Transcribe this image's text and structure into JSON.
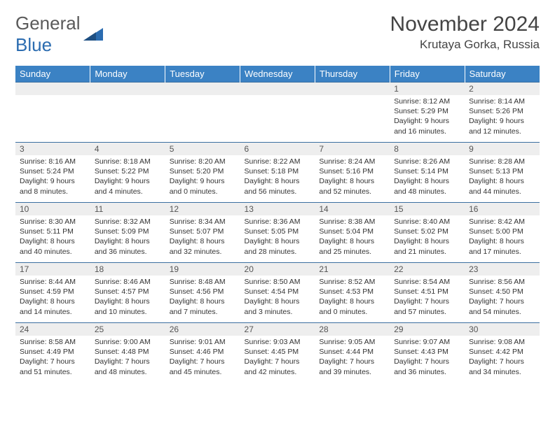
{
  "logo": {
    "text1": "General",
    "text2": "Blue"
  },
  "title": "November 2024",
  "location": "Krutaya Gorka, Russia",
  "colors": {
    "header_bg": "#3b82c4",
    "header_text": "#ffffff",
    "daynum_bg": "#eeeeee",
    "body_text": "#333333",
    "border": "#3b6fa0",
    "logo_gray": "#5a5a5a",
    "logo_blue": "#2b6cb0"
  },
  "weekdays": [
    "Sunday",
    "Monday",
    "Tuesday",
    "Wednesday",
    "Thursday",
    "Friday",
    "Saturday"
  ],
  "first_weekday_index": 5,
  "days": [
    {
      "n": "1",
      "sunrise": "8:12 AM",
      "sunset": "5:29 PM",
      "daylight": "9 hours and 16 minutes."
    },
    {
      "n": "2",
      "sunrise": "8:14 AM",
      "sunset": "5:26 PM",
      "daylight": "9 hours and 12 minutes."
    },
    {
      "n": "3",
      "sunrise": "8:16 AM",
      "sunset": "5:24 PM",
      "daylight": "9 hours and 8 minutes."
    },
    {
      "n": "4",
      "sunrise": "8:18 AM",
      "sunset": "5:22 PM",
      "daylight": "9 hours and 4 minutes."
    },
    {
      "n": "5",
      "sunrise": "8:20 AM",
      "sunset": "5:20 PM",
      "daylight": "9 hours and 0 minutes."
    },
    {
      "n": "6",
      "sunrise": "8:22 AM",
      "sunset": "5:18 PM",
      "daylight": "8 hours and 56 minutes."
    },
    {
      "n": "7",
      "sunrise": "8:24 AM",
      "sunset": "5:16 PM",
      "daylight": "8 hours and 52 minutes."
    },
    {
      "n": "8",
      "sunrise": "8:26 AM",
      "sunset": "5:14 PM",
      "daylight": "8 hours and 48 minutes."
    },
    {
      "n": "9",
      "sunrise": "8:28 AM",
      "sunset": "5:13 PM",
      "daylight": "8 hours and 44 minutes."
    },
    {
      "n": "10",
      "sunrise": "8:30 AM",
      "sunset": "5:11 PM",
      "daylight": "8 hours and 40 minutes."
    },
    {
      "n": "11",
      "sunrise": "8:32 AM",
      "sunset": "5:09 PM",
      "daylight": "8 hours and 36 minutes."
    },
    {
      "n": "12",
      "sunrise": "8:34 AM",
      "sunset": "5:07 PM",
      "daylight": "8 hours and 32 minutes."
    },
    {
      "n": "13",
      "sunrise": "8:36 AM",
      "sunset": "5:05 PM",
      "daylight": "8 hours and 28 minutes."
    },
    {
      "n": "14",
      "sunrise": "8:38 AM",
      "sunset": "5:04 PM",
      "daylight": "8 hours and 25 minutes."
    },
    {
      "n": "15",
      "sunrise": "8:40 AM",
      "sunset": "5:02 PM",
      "daylight": "8 hours and 21 minutes."
    },
    {
      "n": "16",
      "sunrise": "8:42 AM",
      "sunset": "5:00 PM",
      "daylight": "8 hours and 17 minutes."
    },
    {
      "n": "17",
      "sunrise": "8:44 AM",
      "sunset": "4:59 PM",
      "daylight": "8 hours and 14 minutes."
    },
    {
      "n": "18",
      "sunrise": "8:46 AM",
      "sunset": "4:57 PM",
      "daylight": "8 hours and 10 minutes."
    },
    {
      "n": "19",
      "sunrise": "8:48 AM",
      "sunset": "4:56 PM",
      "daylight": "8 hours and 7 minutes."
    },
    {
      "n": "20",
      "sunrise": "8:50 AM",
      "sunset": "4:54 PM",
      "daylight": "8 hours and 3 minutes."
    },
    {
      "n": "21",
      "sunrise": "8:52 AM",
      "sunset": "4:53 PM",
      "daylight": "8 hours and 0 minutes."
    },
    {
      "n": "22",
      "sunrise": "8:54 AM",
      "sunset": "4:51 PM",
      "daylight": "7 hours and 57 minutes."
    },
    {
      "n": "23",
      "sunrise": "8:56 AM",
      "sunset": "4:50 PM",
      "daylight": "7 hours and 54 minutes."
    },
    {
      "n": "24",
      "sunrise": "8:58 AM",
      "sunset": "4:49 PM",
      "daylight": "7 hours and 51 minutes."
    },
    {
      "n": "25",
      "sunrise": "9:00 AM",
      "sunset": "4:48 PM",
      "daylight": "7 hours and 48 minutes."
    },
    {
      "n": "26",
      "sunrise": "9:01 AM",
      "sunset": "4:46 PM",
      "daylight": "7 hours and 45 minutes."
    },
    {
      "n": "27",
      "sunrise": "9:03 AM",
      "sunset": "4:45 PM",
      "daylight": "7 hours and 42 minutes."
    },
    {
      "n": "28",
      "sunrise": "9:05 AM",
      "sunset": "4:44 PM",
      "daylight": "7 hours and 39 minutes."
    },
    {
      "n": "29",
      "sunrise": "9:07 AM",
      "sunset": "4:43 PM",
      "daylight": "7 hours and 36 minutes."
    },
    {
      "n": "30",
      "sunrise": "9:08 AM",
      "sunset": "4:42 PM",
      "daylight": "7 hours and 34 minutes."
    }
  ],
  "labels": {
    "sunrise": "Sunrise: ",
    "sunset": "Sunset: ",
    "daylight": "Daylight: "
  }
}
